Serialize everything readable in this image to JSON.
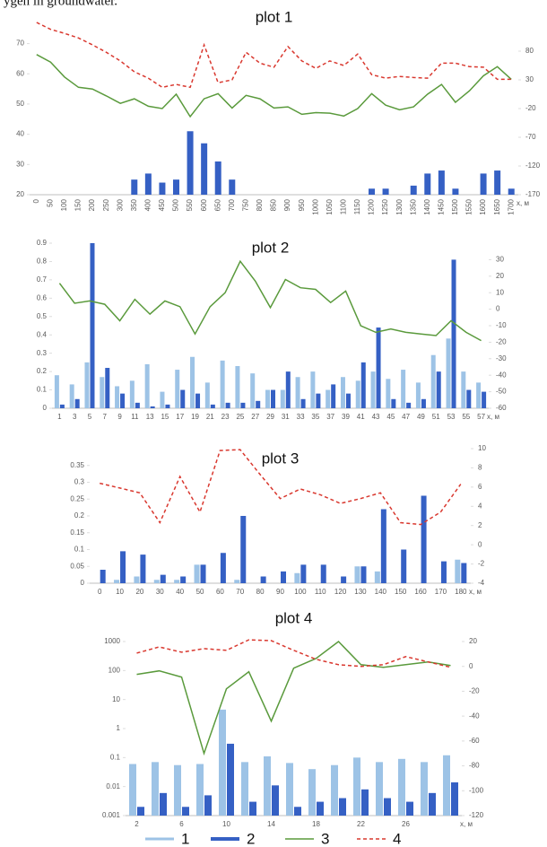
{
  "caption": "ygen in groundwater.",
  "legend": [
    {
      "label": "1",
      "color": "#9dc3e6",
      "width": 3,
      "linestyle": "solid"
    },
    {
      "label": "2",
      "color": "#3560c4",
      "width": 4,
      "linestyle": "solid"
    },
    {
      "label": "3",
      "color": "#5a9a3c",
      "width": 1.5,
      "linestyle": "solid"
    },
    {
      "label": "4",
      "color": "#d9382f",
      "width": 1.5,
      "linestyle": "dashed"
    }
  ],
  "chart_data": [
    {
      "type": "combo",
      "title": "plot 1",
      "xlabel": "x, м",
      "rotate_x_labels": true,
      "categories": [
        "0",
        "50",
        "100",
        "150",
        "200",
        "250",
        "300",
        "350",
        "400",
        "450",
        "500",
        "550",
        "600",
        "650",
        "700",
        "750",
        "800",
        "850",
        "900",
        "950",
        "1000",
        "1050",
        "1100",
        "1150",
        "1200",
        "1250",
        "1300",
        "1350",
        "1400",
        "1450",
        "1500",
        "1550",
        "1600",
        "1650",
        "1700"
      ],
      "ylim": [
        20,
        77
      ],
      "yticks": [
        20,
        30,
        40,
        50,
        60,
        70
      ],
      "y2lim": [
        -170,
        130
      ],
      "y2ticks": [
        80,
        30,
        -20,
        -70,
        -120,
        -170
      ],
      "series": [
        {
          "name": "2",
          "type": "bar",
          "color": "#3560c4",
          "values": [
            null,
            null,
            null,
            null,
            null,
            null,
            null,
            25,
            27,
            24,
            25,
            41,
            37,
            31,
            25,
            null,
            null,
            null,
            null,
            null,
            null,
            null,
            null,
            null,
            22,
            22,
            null,
            23,
            27,
            28,
            22,
            null,
            27,
            28,
            22
          ]
        },
        {
          "name": "3",
          "type": "line",
          "axis": "y2",
          "color": "#5a9a3c",
          "linestyle": "solid",
          "values": [
            74,
            61,
            35,
            17,
            14,
            2,
            -11,
            -3,
            -16,
            -20,
            5,
            -34,
            -3,
            6,
            -19,
            3,
            -3,
            -19,
            -17,
            -30,
            -27,
            -28,
            -33,
            -20,
            6,
            -14,
            -22,
            -17,
            5,
            22,
            -9,
            11,
            37,
            53,
            31
          ]
        },
        {
          "name": "4",
          "type": "line",
          "axis": "y2",
          "color": "#d9382f",
          "linestyle": "dashed",
          "values": [
            130,
            118,
            111,
            103,
            91,
            78,
            63,
            44,
            33,
            17,
            22,
            17,
            91,
            25,
            30,
            78,
            59,
            52,
            88,
            63,
            50,
            63,
            55,
            75,
            39,
            33,
            36,
            34,
            33,
            59,
            59,
            53,
            52,
            31,
            31
          ]
        }
      ]
    },
    {
      "type": "combo",
      "title": "plot 2",
      "xlabel": "x, м",
      "categories": [
        "1",
        "3",
        "5",
        "7",
        "9",
        "11",
        "13",
        "15",
        "17",
        "19",
        "21",
        "23",
        "25",
        "27",
        "29",
        "31",
        "33",
        "35",
        "37",
        "39",
        "41",
        "43",
        "45",
        "47",
        "49",
        "51",
        "53",
        "55",
        "57"
      ],
      "ylim": [
        0,
        0.9
      ],
      "yticks": [
        0,
        0.1,
        0.2,
        0.3,
        0.4,
        0.5,
        0.6,
        0.7,
        0.8,
        0.9
      ],
      "y2lim": [
        -60,
        40
      ],
      "y2ticks": [
        30,
        20,
        10,
        0,
        -10,
        -20,
        -30,
        -40,
        -50,
        -60
      ],
      "series": [
        {
          "name": "1",
          "type": "bar",
          "color": "#9dc3e6",
          "values": [
            0.18,
            0.13,
            0.25,
            0.17,
            0.12,
            0.15,
            0.24,
            0.09,
            0.21,
            0.28,
            0.14,
            0.26,
            0.23,
            0.19,
            0.1,
            0.1,
            0.17,
            0.2,
            0.1,
            0.17,
            0.15,
            0.2,
            0.16,
            0.21,
            0.14,
            0.29,
            0.38,
            0.2,
            0.14
          ]
        },
        {
          "name": "2",
          "type": "bar",
          "color": "#3560c4",
          "values": [
            0.02,
            0.05,
            0.9,
            0.22,
            0.08,
            0.03,
            0.01,
            0.02,
            0.1,
            0.08,
            0.02,
            0.03,
            0.03,
            0.04,
            0.1,
            0.2,
            0.05,
            0.08,
            0.13,
            0.08,
            0.25,
            0.44,
            0.05,
            0.03,
            0.05,
            0.2,
            0.81,
            0.1,
            0.09
          ]
        },
        {
          "name": "3",
          "type": "line",
          "axis": "y2",
          "color": "#5a9a3c",
          "linestyle": "solid",
          "values": [
            15.7,
            3.6,
            5,
            3,
            -7,
            6,
            -3,
            5,
            1.5,
            -15,
            1.5,
            10,
            29,
            17,
            1,
            18,
            13,
            12,
            4,
            11,
            -10,
            -14,
            -12,
            -14,
            -15,
            -16,
            -7,
            -14,
            -19
          ]
        }
      ]
    },
    {
      "type": "combo",
      "title": "plot 3",
      "xlabel": "x, м",
      "categories": [
        "0",
        "10",
        "20",
        "30",
        "40",
        "50",
        "60",
        "70",
        "80",
        "90",
        "100",
        "110",
        "120",
        "130",
        "140",
        "150",
        "160",
        "170",
        "180"
      ],
      "ylim": [
        0,
        0.4
      ],
      "yticks": [
        0,
        0.05,
        0.1,
        0.15,
        0.2,
        0.25,
        0.3,
        0.35
      ],
      "y2lim": [
        -4,
        10
      ],
      "y2ticks": [
        10,
        8,
        6,
        4,
        2,
        0,
        -2,
        -4
      ],
      "series": [
        {
          "name": "1",
          "type": "bar",
          "color": "#9dc3e6",
          "values": [
            null,
            0.01,
            0.02,
            0.01,
            0.01,
            0.055,
            null,
            0.01,
            null,
            null,
            0.03,
            null,
            null,
            0.05,
            0.035,
            null,
            null,
            null,
            0.07
          ]
        },
        {
          "name": "2",
          "type": "bar",
          "color": "#3560c4",
          "values": [
            0.04,
            0.095,
            0.085,
            0.025,
            0.02,
            0.055,
            0.09,
            0.2,
            0.02,
            0.035,
            0.055,
            0.055,
            0.02,
            0.05,
            0.22,
            0.1,
            0.26,
            0.065,
            0.06
          ]
        },
        {
          "name": "4",
          "type": "line",
          "axis": "y2",
          "color": "#d9382f",
          "linestyle": "dashed",
          "values": [
            6.4,
            5.9,
            5.4,
            2.3,
            7.1,
            3.4,
            9.8,
            9.9,
            7.3,
            4.8,
            5.8,
            5.2,
            4.3,
            4.8,
            5.4,
            2.3,
            2.1,
            3.4,
            6.3
          ]
        }
      ]
    },
    {
      "type": "combo",
      "title": "plot 4",
      "xlabel": "x, м",
      "ylog": true,
      "categories": [
        "2",
        null,
        "6",
        null,
        "10",
        null,
        "14",
        null,
        "18",
        null,
        "22",
        null,
        "26",
        null,
        null
      ],
      "ylim": [
        0.001,
        1000
      ],
      "yticks": [
        0.001,
        0.01,
        0.1,
        1,
        10,
        100,
        1000
      ],
      "y2lim": [
        -120,
        20
      ],
      "y2ticks": [
        20,
        0,
        -20,
        -40,
        -60,
        -80,
        -100,
        -120
      ],
      "series": [
        {
          "name": "1",
          "type": "bar",
          "color": "#9dc3e6",
          "values": [
            0.06,
            0.07,
            0.055,
            0.06,
            4.5,
            0.07,
            0.11,
            0.065,
            0.04,
            0.055,
            0.1,
            0.07,
            0.09,
            0.07,
            0.12
          ]
        },
        {
          "name": "2",
          "type": "bar",
          "color": "#3560c4",
          "values": [
            0.002,
            0.006,
            0.002,
            0.005,
            0.3,
            0.003,
            0.011,
            0.002,
            0.003,
            0.004,
            0.008,
            0.004,
            0.003,
            0.006,
            0.014
          ]
        },
        {
          "name": "3",
          "type": "line",
          "axis": "y2",
          "color": "#5a9a3c",
          "linestyle": "solid",
          "values": [
            -6.4,
            -3.6,
            -8.6,
            -70,
            -18,
            -4.3,
            -44,
            -1.4,
            6.4,
            20,
            1.4,
            -0.7,
            1.4,
            3.6,
            0.7
          ]
        },
        {
          "name": "4",
          "type": "line",
          "axis": "y2",
          "color": "#d9382f",
          "linestyle": "dashed",
          "values": [
            10.7,
            15.7,
            11.4,
            14.3,
            12.9,
            21.4,
            20.7,
            12.9,
            5.7,
            1.4,
            0,
            1.4,
            7.9,
            3.6,
            -0.7
          ]
        }
      ]
    }
  ]
}
